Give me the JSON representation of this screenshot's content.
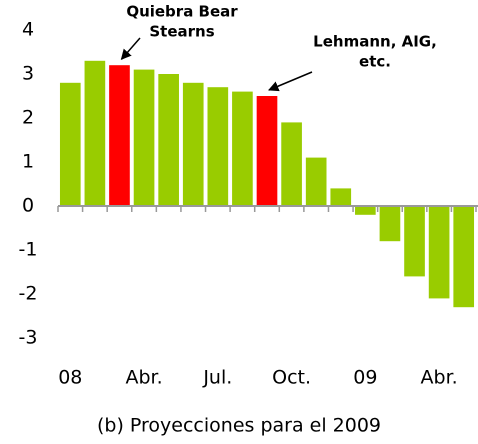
{
  "chart_data": {
    "type": "bar",
    "title": "(b) Proyecciones para el 2009",
    "categories": [
      "08",
      null,
      null,
      "Abr.",
      null,
      null,
      "Jul.",
      null,
      null,
      "Oct.",
      null,
      null,
      "09",
      null,
      null,
      "Abr.",
      null
    ],
    "values": [
      2.8,
      3.3,
      3.2,
      3.1,
      3.0,
      2.8,
      2.7,
      2.6,
      2.5,
      1.9,
      1.1,
      0.4,
      -0.2,
      -0.8,
      -1.6,
      -2.1,
      -2.3
    ],
    "colors": [
      "#99cc00",
      "#99cc00",
      "#ff0000",
      "#99cc00",
      "#99cc00",
      "#99cc00",
      "#99cc00",
      "#99cc00",
      "#ff0000",
      "#99cc00",
      "#99cc00",
      "#99cc00",
      "#99cc00",
      "#99cc00",
      "#99cc00",
      "#99cc00",
      "#99cc00"
    ],
    "ylim": [
      -3,
      4
    ],
    "yticks": [
      -3,
      -2,
      -1,
      0,
      1,
      2,
      3,
      4
    ],
    "grid": false,
    "annotations": [
      {
        "lines": [
          "Quiebra Bear",
          "Stearns"
        ],
        "index": 2
      },
      {
        "lines": [
          "Lehmann, AIG,",
          "etc."
        ],
        "index": 8
      }
    ]
  }
}
